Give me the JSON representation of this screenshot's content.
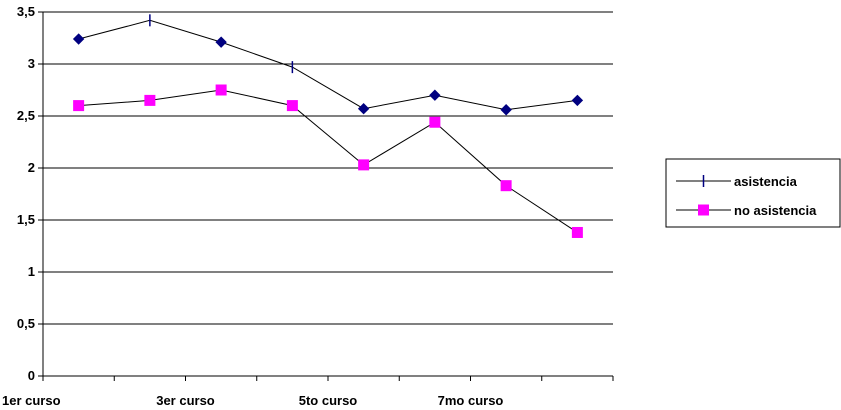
{
  "chart_data": {
    "type": "line",
    "title": "",
    "xlabel": "",
    "ylabel": "",
    "categories": [
      "1er curso",
      "",
      "3er curso",
      "",
      "5to curso",
      "",
      "7mo curso",
      ""
    ],
    "ylim": [
      0,
      3.5
    ],
    "yticks": [
      0,
      0.5,
      1,
      1.5,
      2,
      2.5,
      3,
      3.5
    ],
    "ytick_labels": [
      "0",
      "0,5",
      "1",
      "1,5",
      "2",
      "2,5",
      "3",
      "3,5"
    ],
    "grid": true,
    "legend_position": "right",
    "series": [
      {
        "name": "asistencia",
        "values": [
          3.24,
          3.42,
          3.21,
          2.97,
          2.57,
          2.7,
          2.56,
          2.65
        ],
        "markers": [
          "diamond",
          "bar",
          "diamond",
          "bar",
          "diamond",
          "diamond",
          "diamond",
          "diamond"
        ],
        "color": "#000080"
      },
      {
        "name": "no asistencia",
        "values": [
          2.6,
          2.65,
          2.75,
          2.6,
          2.03,
          2.44,
          1.83,
          1.38
        ],
        "marker": "square",
        "color": "#ff00ff"
      }
    ]
  }
}
